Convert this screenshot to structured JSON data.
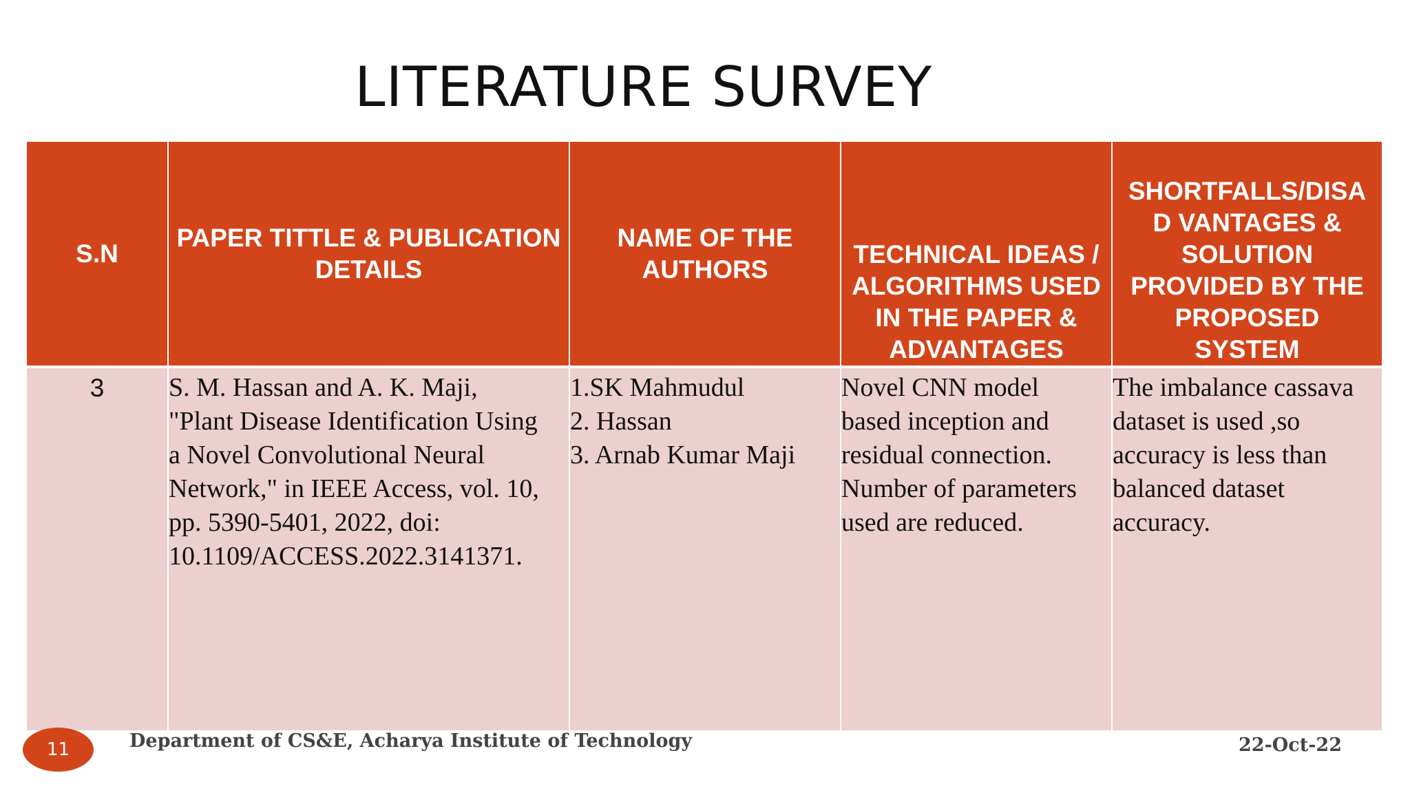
{
  "slide": {
    "title": "LITERATURE SURVEY",
    "page_number": "11",
    "footer_department": "Department of CS&E, Acharya Institute of Technology",
    "footer_date": "22-Oct-22"
  },
  "table": {
    "headers": [
      "S.N",
      "PAPER TITTLE\n& PUBLICATION DETAILS",
      "NAME OF THE AUTHORS",
      "TECHNICAL IDEAS / ALGORITHMS USED IN THE PAPER & ADVANTAGES",
      "SHORTFALLS/DISA D VANTAGES & SOLUTION PROVIDED BY THE PROPOSED SYSTEM"
    ],
    "row": {
      "sn": "3",
      "paper": "S. M. Hassan and A. K. Maji,\n\"Plant Disease Identification Using\na Novel Convolutional Neural\nNetwork,\" in IEEE Access, vol. 10,\npp. 5390-5401, 2022, doi:\n10.1109/ACCESS.2022.3141371.",
      "authors": "1.SK Mahmudul\n2. Hassan\n3. Arnab Kumar Maji",
      "technical": "Novel CNN model\nbased inception and\nresidual connection.\nNumber of parameters\nused are reduced.",
      "shortfalls": "The imbalance cassava\ndataset is used ,so\naccuracy is less than\nbalanced dataset\naccuracy."
    }
  },
  "colors": {
    "accent": "#d2451b",
    "row_background": "#eccfcf",
    "header_text": "#ffffff"
  }
}
